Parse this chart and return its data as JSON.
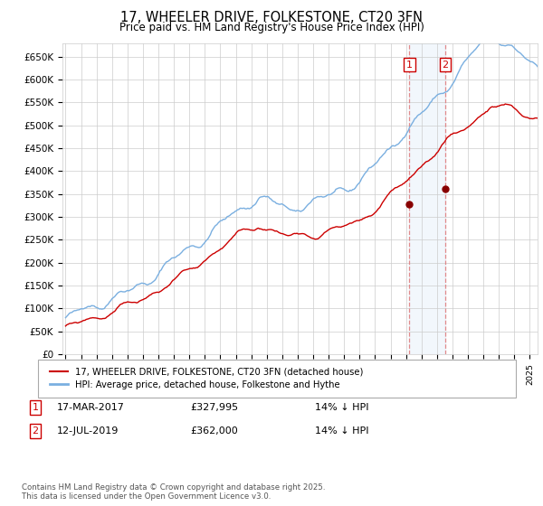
{
  "title": "17, WHEELER DRIVE, FOLKESTONE, CT20 3FN",
  "subtitle": "Price paid vs. HM Land Registry's House Price Index (HPI)",
  "background_color": "#ffffff",
  "grid_color": "#cccccc",
  "ylim": [
    0,
    680000
  ],
  "yticks": [
    0,
    50000,
    100000,
    150000,
    200000,
    250000,
    300000,
    350000,
    400000,
    450000,
    500000,
    550000,
    600000,
    650000
  ],
  "ytick_labels": [
    "£0",
    "£50K",
    "£100K",
    "£150K",
    "£200K",
    "£250K",
    "£300K",
    "£350K",
    "£400K",
    "£450K",
    "£500K",
    "£550K",
    "£600K",
    "£650K"
  ],
  "hpi_color": "#7aafe0",
  "property_color": "#cc0000",
  "sale1_date": "17-MAR-2017",
  "sale1_price": 327995,
  "sale1_label": "14% ↓ HPI",
  "sale1_year": 2017.21,
  "sale2_date": "12-JUL-2019",
  "sale2_price": 362000,
  "sale2_label": "14% ↓ HPI",
  "sale2_year": 2019.54,
  "legend1_label": "17, WHEELER DRIVE, FOLKESTONE, CT20 3FN (detached house)",
  "legend2_label": "HPI: Average price, detached house, Folkestone and Hythe",
  "footnote": "Contains HM Land Registry data © Crown copyright and database right 2025.\nThis data is licensed under the Open Government Licence v3.0.",
  "xlim_start": 1994.8,
  "xlim_end": 2025.5
}
